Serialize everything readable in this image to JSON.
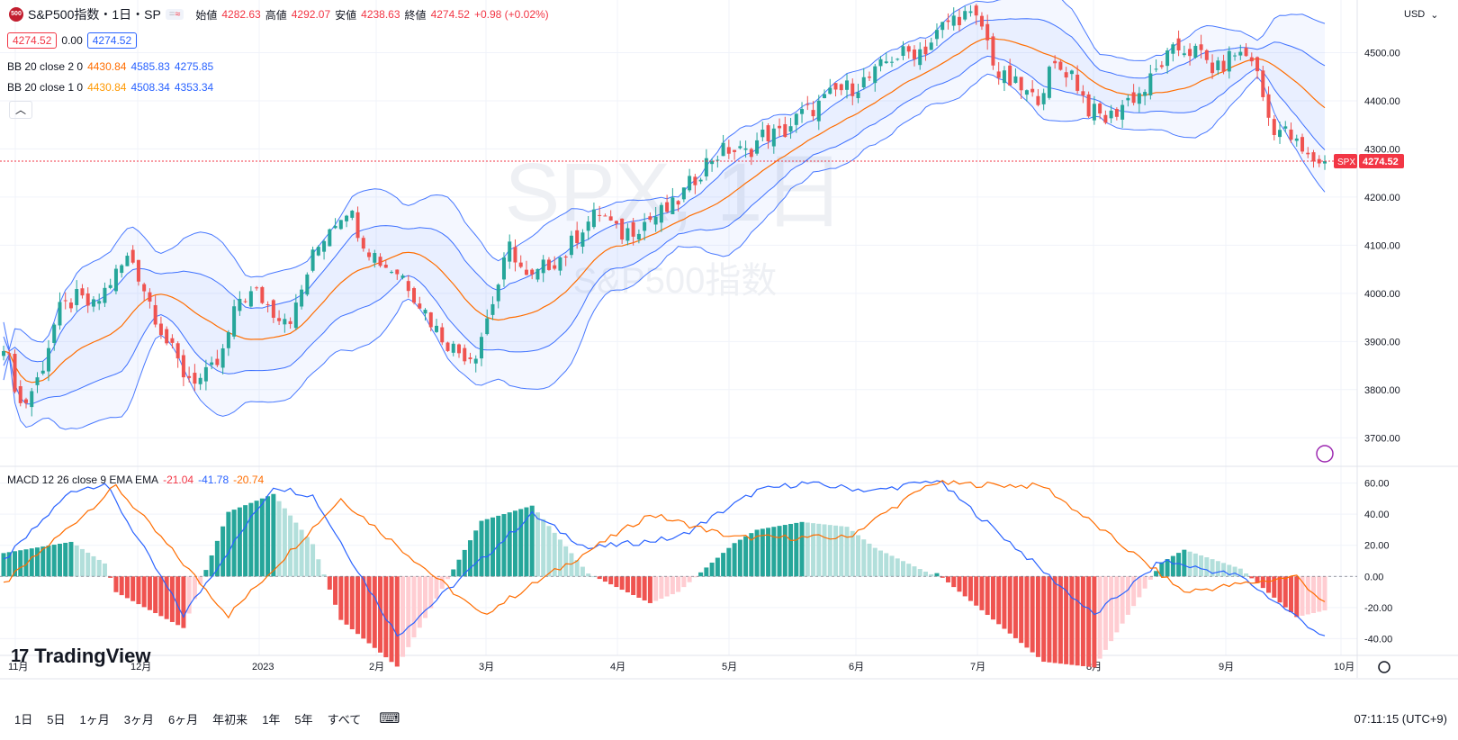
{
  "header": {
    "symbol_icon": "500",
    "title": "S&P500指数・1日・SP",
    "ohlc": {
      "open_label": "始値",
      "open": "4282.63",
      "high_label": "高値",
      "high": "4292.07",
      "low_label": "安値",
      "low": "4238.63",
      "close_label": "終値",
      "close": "4274.52",
      "change": "+0.98 (+0.02%)"
    }
  },
  "legend": {
    "price_box": "4274.52",
    "spread": "0.00",
    "ask_box": "4274.52",
    "bb2": {
      "label": "BB 20 close 2 0",
      "mid": "4430.84",
      "upper": "4585.83",
      "lower": "4275.85"
    },
    "bb1": {
      "label": "BB 20 close 1 0",
      "mid": "4430.84",
      "upper": "4508.34",
      "lower": "4353.34"
    },
    "macd": {
      "label": "MACD 12 26 close 9 EMA EMA",
      "hist": "-21.04",
      "macd": "-41.78",
      "signal": "-20.74"
    }
  },
  "watermark": {
    "main": "SPX, 1日",
    "sub": "S&P500指数"
  },
  "currency": "USD",
  "last_price_tag": {
    "symbol": "SPX",
    "value": "4274.52"
  },
  "bottom": {
    "ranges": [
      "1日",
      "5日",
      "1ヶ月",
      "3ヶ月",
      "6ヶ月",
      "年初来",
      "1年",
      "5年",
      "すべて"
    ],
    "time": "07:11:15 (UTC+9)"
  },
  "branding": "TradingView",
  "colors": {
    "up": "#26a69a",
    "down": "#ef5350",
    "bb_band": "#2962ff",
    "bb_mid": "#ff6d00",
    "macd_line": "#2962ff",
    "signal_line": "#ff6d00"
  },
  "chart_data": {
    "type": "candlestick",
    "price_axis": {
      "ticks": [
        "4500.00",
        "4400.00",
        "4300.00",
        "4200.00",
        "4100.00",
        "4000.00",
        "3900.00",
        "3800.00",
        "3700.00"
      ],
      "range": [
        3650,
        4600
      ]
    },
    "macd_axis": {
      "ticks": [
        "60.00",
        "40.00",
        "20.00",
        "0.00",
        "-20.00",
        "-40.00"
      ],
      "range": [
        -45,
        65
      ]
    },
    "x_labels": [
      "11月",
      "12月",
      "2023",
      "2月",
      "3月",
      "4月",
      "5月",
      "6月",
      "7月",
      "8月",
      "9月",
      "10月"
    ],
    "close_path": [
      3900,
      3760,
      3830,
      3960,
      3990,
      3970,
      4030,
      4080,
      3990,
      3900,
      3830,
      3820,
      3860,
      3990,
      4000,
      3960,
      3950,
      4070,
      4140,
      4180,
      4100,
      4060,
      4040,
      3980,
      3920,
      3880,
      3870,
      3980,
      4100,
      4020,
      4060,
      4080,
      4140,
      4170,
      4120,
      4140,
      4160,
      4180,
      4230,
      4280,
      4300,
      4290,
      4330,
      4330,
      4370,
      4390,
      4420,
      4430,
      4450,
      4490,
      4500,
      4510,
      4560,
      4580,
      4560,
      4450,
      4430,
      4400,
      4470,
      4460,
      4380,
      4360,
      4400,
      4420,
      4480,
      4510,
      4500,
      4460,
      4500,
      4490,
      4350,
      4330,
      4280,
      4274.52
    ],
    "macd": {
      "line_keypoints": [
        [
          0,
          10
        ],
        [
          12,
          55
        ],
        [
          18,
          60
        ],
        [
          32,
          -25
        ],
        [
          48,
          58
        ],
        [
          55,
          52
        ],
        [
          70,
          -38
        ],
        [
          94,
          40
        ],
        [
          104,
          18
        ],
        [
          120,
          25
        ],
        [
          134,
          55
        ],
        [
          142,
          60
        ],
        [
          155,
          55
        ],
        [
          166,
          62
        ],
        [
          178,
          25
        ],
        [
          194,
          -25
        ],
        [
          206,
          10
        ],
        [
          220,
          0
        ],
        [
          236,
          -41.78
        ]
      ],
      "signal_keypoints": [
        [
          0,
          -5
        ],
        [
          20,
          58
        ],
        [
          40,
          -25
        ],
        [
          60,
          50
        ],
        [
          85,
          -25
        ],
        [
          115,
          40
        ],
        [
          130,
          25
        ],
        [
          150,
          25
        ],
        [
          165,
          60
        ],
        [
          185,
          58
        ],
        [
          210,
          -10
        ],
        [
          230,
          0
        ],
        [
          236,
          -20.74
        ]
      ]
    }
  }
}
